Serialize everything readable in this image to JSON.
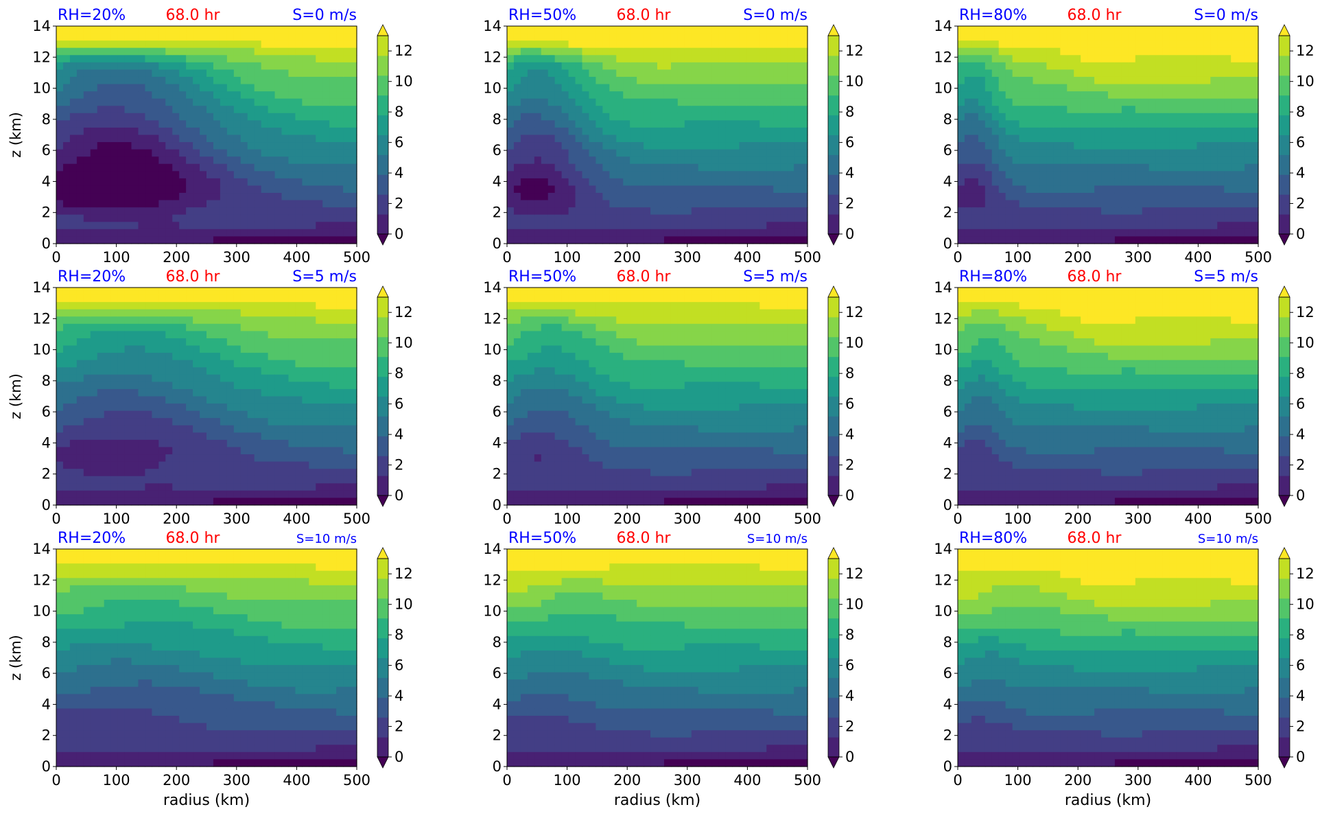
{
  "figure": {
    "colors": {
      "title_blue": "#0000ff",
      "title_red": "#ff0000",
      "viridis": [
        "#440154",
        "#482173",
        "#433e85",
        "#38588c",
        "#2d708e",
        "#25858e",
        "#1e9b8a",
        "#2ab07f",
        "#52c569",
        "#86d549",
        "#c2df23",
        "#fde725"
      ]
    },
    "colorbar": {
      "ticks": [
        "0",
        "2",
        "4",
        "6",
        "8",
        "10",
        "12"
      ],
      "vmin": 0,
      "vmax": 13,
      "extend": "both"
    },
    "xlabel": "radius (km)",
    "ylabel": "z (km)",
    "time_label": "68.0 hr"
  },
  "chart_data": [
    {
      "type": "heatmap",
      "title_left": "RH=20%",
      "title_center": "68.0 hr",
      "title_right": "S=0 m/s",
      "x_ticks": [
        "0",
        "100",
        "200",
        "300",
        "400",
        "500"
      ],
      "y_ticks": [
        "0",
        "2",
        "4",
        "6",
        "8",
        "10",
        "12",
        "14"
      ],
      "xlim": [
        0,
        500
      ],
      "ylim": [
        0,
        14
      ],
      "colorbar_ticks": [
        "0",
        "2",
        "4",
        "6",
        "8",
        "10",
        "12"
      ],
      "ylabel": "z (km)",
      "xlabel": "",
      "rh": 20,
      "shear": 0
    },
    {
      "type": "heatmap",
      "title_left": "RH=50%",
      "title_center": "68.0 hr",
      "title_right": "S=0 m/s",
      "x_ticks": [
        "0",
        "100",
        "200",
        "300",
        "400",
        "500"
      ],
      "y_ticks": [
        "0",
        "2",
        "4",
        "6",
        "8",
        "10",
        "12",
        "14"
      ],
      "xlim": [
        0,
        500
      ],
      "ylim": [
        0,
        14
      ],
      "colorbar_ticks": [
        "0",
        "2",
        "4",
        "6",
        "8",
        "10",
        "12"
      ],
      "ylabel": "",
      "xlabel": "",
      "rh": 50,
      "shear": 0
    },
    {
      "type": "heatmap",
      "title_left": "RH=80%",
      "title_center": "68.0 hr",
      "title_right": "S=0 m/s",
      "x_ticks": [
        "0",
        "100",
        "200",
        "300",
        "400",
        "500"
      ],
      "y_ticks": [
        "0",
        "2",
        "4",
        "6",
        "8",
        "10",
        "12",
        "14"
      ],
      "xlim": [
        0,
        500
      ],
      "ylim": [
        0,
        14
      ],
      "colorbar_ticks": [
        "0",
        "2",
        "4",
        "6",
        "8",
        "10",
        "12"
      ],
      "ylabel": "",
      "xlabel": "",
      "rh": 80,
      "shear": 0
    },
    {
      "type": "heatmap",
      "title_left": "RH=20%",
      "title_center": "68.0 hr",
      "title_right": "S=5 m/s",
      "x_ticks": [
        "0",
        "100",
        "200",
        "300",
        "400",
        "500"
      ],
      "y_ticks": [
        "0",
        "2",
        "4",
        "6",
        "8",
        "10",
        "12",
        "14"
      ],
      "xlim": [
        0,
        500
      ],
      "ylim": [
        0,
        14
      ],
      "colorbar_ticks": [
        "0",
        "2",
        "4",
        "6",
        "8",
        "10",
        "12"
      ],
      "ylabel": "z (km)",
      "xlabel": "",
      "rh": 20,
      "shear": 5
    },
    {
      "type": "heatmap",
      "title_left": "RH=50%",
      "title_center": "68.0 hr",
      "title_right": "S=5 m/s",
      "x_ticks": [
        "0",
        "100",
        "200",
        "300",
        "400",
        "500"
      ],
      "y_ticks": [
        "0",
        "2",
        "4",
        "6",
        "8",
        "10",
        "12",
        "14"
      ],
      "xlim": [
        0,
        500
      ],
      "ylim": [
        0,
        14
      ],
      "colorbar_ticks": [
        "0",
        "2",
        "4",
        "6",
        "8",
        "10",
        "12"
      ],
      "ylabel": "",
      "xlabel": "",
      "rh": 50,
      "shear": 5
    },
    {
      "type": "heatmap",
      "title_left": "RH=80%",
      "title_center": "68.0 hr",
      "title_right": "S=5 m/s",
      "x_ticks": [
        "0",
        "100",
        "200",
        "300",
        "400",
        "500"
      ],
      "y_ticks": [
        "0",
        "2",
        "4",
        "6",
        "8",
        "10",
        "12",
        "14"
      ],
      "xlim": [
        0,
        500
      ],
      "ylim": [
        0,
        14
      ],
      "colorbar_ticks": [
        "0",
        "2",
        "4",
        "6",
        "8",
        "10",
        "12"
      ],
      "ylabel": "",
      "xlabel": "",
      "rh": 80,
      "shear": 5
    },
    {
      "type": "heatmap",
      "title_left": "RH=20%",
      "title_center": "68.0 hr",
      "title_right": "S=10 m/s",
      "x_ticks": [
        "0",
        "100",
        "200",
        "300",
        "400",
        "500"
      ],
      "y_ticks": [
        "0",
        "2",
        "4",
        "6",
        "8",
        "10",
        "12",
        "14"
      ],
      "xlim": [
        0,
        500
      ],
      "ylim": [
        0,
        14
      ],
      "colorbar_ticks": [
        "0",
        "2",
        "4",
        "6",
        "8",
        "10",
        "12"
      ],
      "ylabel": "z (km)",
      "xlabel": "radius (km)",
      "rh": 20,
      "shear": 10
    },
    {
      "type": "heatmap",
      "title_left": "RH=50%",
      "title_center": "68.0 hr",
      "title_right": "S=10 m/s",
      "x_ticks": [
        "0",
        "100",
        "200",
        "300",
        "400",
        "500"
      ],
      "y_ticks": [
        "0",
        "2",
        "4",
        "6",
        "8",
        "10",
        "12",
        "14"
      ],
      "xlim": [
        0,
        500
      ],
      "ylim": [
        0,
        14
      ],
      "colorbar_ticks": [
        "0",
        "2",
        "4",
        "6",
        "8",
        "10",
        "12"
      ],
      "ylabel": "",
      "xlabel": "radius (km)",
      "rh": 50,
      "shear": 10
    },
    {
      "type": "heatmap",
      "title_left": "RH=80%",
      "title_center": "68.0 hr",
      "title_right": "S=10 m/s",
      "x_ticks": [
        "0",
        "100",
        "200",
        "300",
        "400",
        "500"
      ],
      "y_ticks": [
        "0",
        "2",
        "4",
        "6",
        "8",
        "10",
        "12",
        "14"
      ],
      "xlim": [
        0,
        500
      ],
      "ylim": [
        0,
        14
      ],
      "colorbar_ticks": [
        "0",
        "2",
        "4",
        "6",
        "8",
        "10",
        "12"
      ],
      "ylabel": "",
      "xlabel": "radius (km)",
      "rh": 80,
      "shear": 10
    }
  ]
}
